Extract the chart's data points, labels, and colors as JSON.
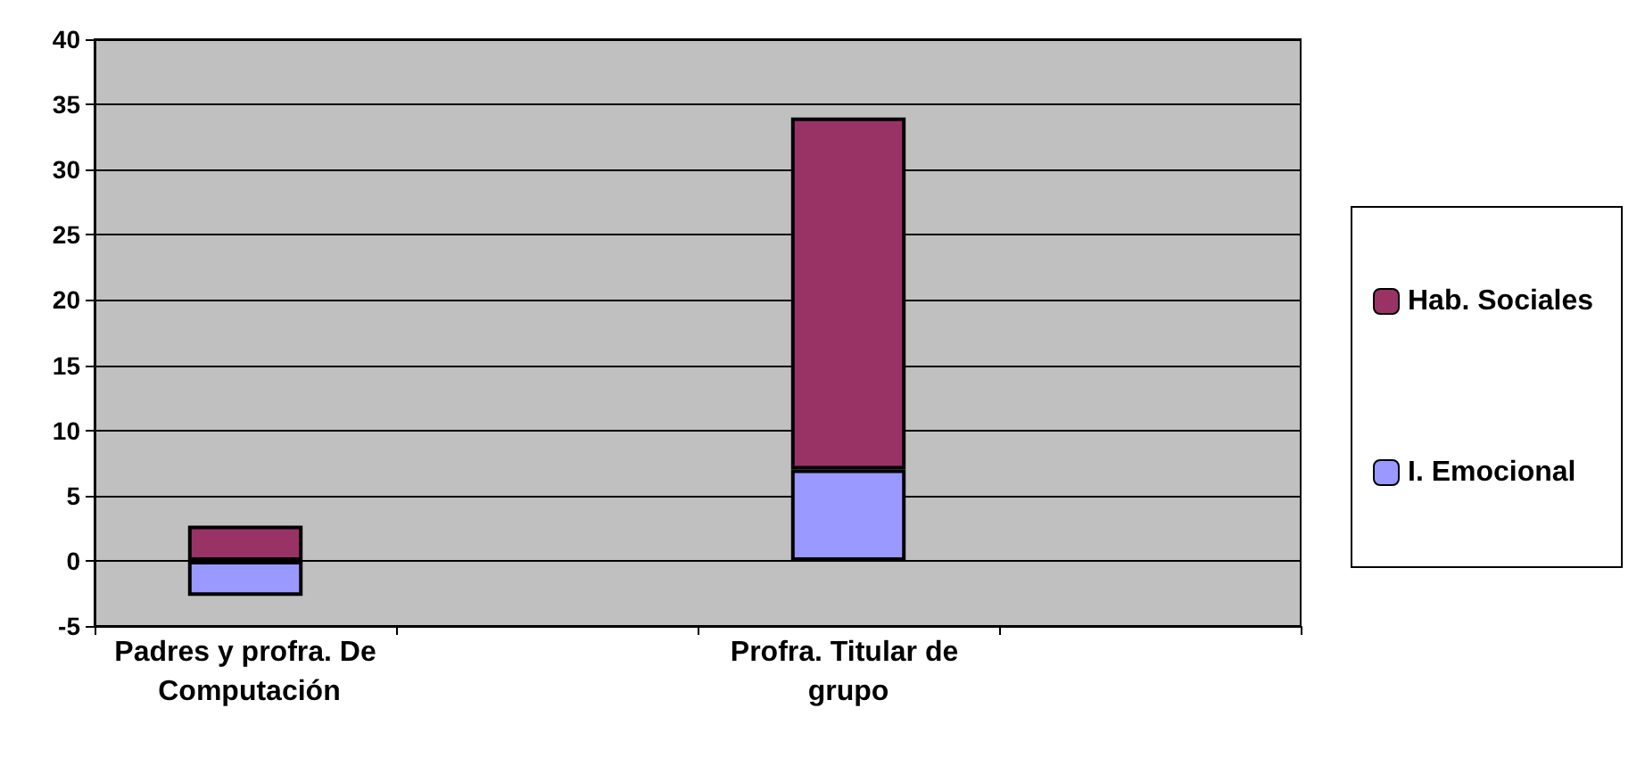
{
  "chart_data": {
    "type": "bar",
    "stacked": true,
    "categories": [
      "Padres y profra. De Computación",
      null,
      "Profra. Titular de grupo",
      null
    ],
    "series": [
      {
        "name": "I. Emocional",
        "color": "#9999ff",
        "values": [
          -2.7,
          null,
          7,
          null
        ]
      },
      {
        "name": "Hab. Sociales",
        "color": "#993366",
        "values": [
          2.7,
          null,
          27,
          null
        ]
      }
    ],
    "ylim": [
      -5,
      40
    ],
    "yticks": [
      -5,
      0,
      5,
      10,
      15,
      20,
      25,
      30,
      35,
      40
    ],
    "grid": "y",
    "legend": "right"
  }
}
